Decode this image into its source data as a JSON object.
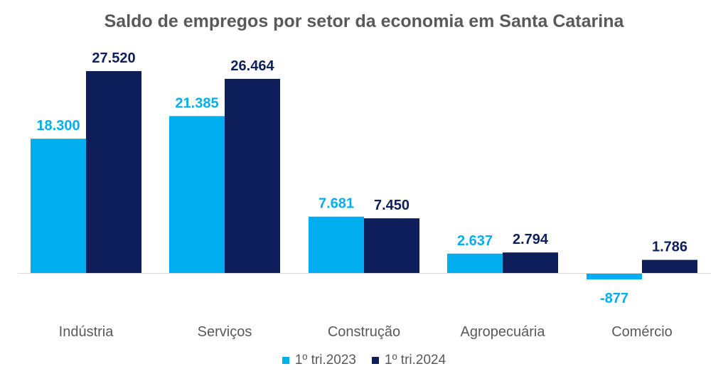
{
  "chart_data": {
    "type": "bar",
    "title": "Saldo de empregos por setor da economia em Santa Catarina",
    "categories": [
      "Indústria",
      "Serviços",
      "Construção",
      "Agropecuária",
      "Comércio"
    ],
    "series": [
      {
        "name": "1º tri.2023",
        "color": "#00AEEF",
        "values": [
          18300,
          21385,
          7681,
          2637,
          -877
        ],
        "labels": [
          "18.300",
          "21.385",
          "7.681",
          "2.637",
          "-877"
        ]
      },
      {
        "name": "1º tri.2024",
        "color": "#0D1E5B",
        "values": [
          27520,
          26464,
          7450,
          2794,
          1786
        ],
        "labels": [
          "27.520",
          "26.464",
          "7.450",
          "2.794",
          "1.786"
        ]
      }
    ],
    "xlabel": "",
    "ylabel": "",
    "grid": false,
    "legend_position": "bottom",
    "axis_color": "#D9D9D9"
  }
}
